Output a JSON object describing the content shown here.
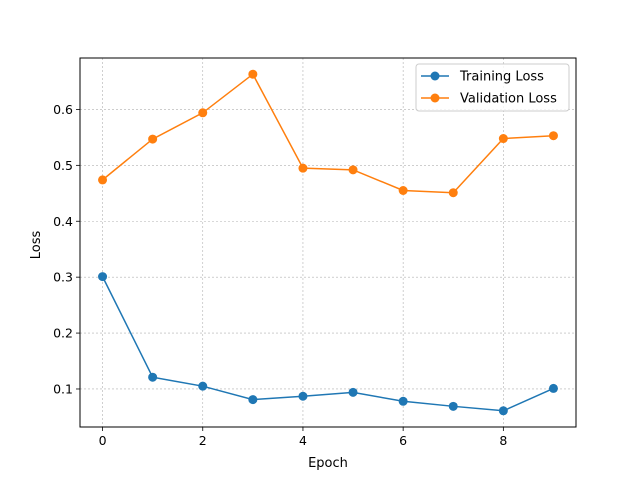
{
  "chart_data": {
    "type": "line",
    "title": "",
    "xlabel": "Epoch",
    "ylabel": "Loss",
    "xlim": [
      -0.45,
      9.45
    ],
    "ylim": [
      0.032,
      0.692
    ],
    "xticks": [
      0,
      2,
      4,
      6,
      8
    ],
    "yticks": [
      0.1,
      0.2,
      0.3,
      0.4,
      0.5,
      0.6
    ],
    "grid": true,
    "legend_position": "top-right",
    "x": [
      0,
      1,
      2,
      3,
      4,
      5,
      6,
      7,
      8,
      9
    ],
    "series": [
      {
        "name": "Training Loss",
        "color": "#1f77b4",
        "marker": "circle",
        "values": [
          0.301,
          0.121,
          0.105,
          0.081,
          0.087,
          0.094,
          0.078,
          0.069,
          0.061,
          0.101
        ]
      },
      {
        "name": "Validation Loss",
        "color": "#ff7f0e",
        "marker": "circle",
        "values": [
          0.474,
          0.547,
          0.594,
          0.663,
          0.495,
          0.492,
          0.455,
          0.451,
          0.548,
          0.553
        ]
      }
    ]
  }
}
